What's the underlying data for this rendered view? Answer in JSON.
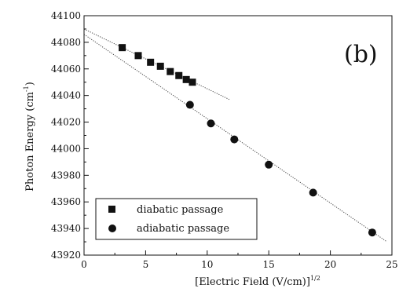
{
  "chart_data": {
    "type": "scatter",
    "panel_label": "(b)",
    "xlabel": "[Electric Field (V/cm)]",
    "xlabel_superscript": "1/2",
    "ylabel": "Photon Energy (cm",
    "ylabel_superscript": "-1",
    "ylabel_suffix": ")",
    "xlim": [
      0,
      25
    ],
    "ylim": [
      43920,
      44100
    ],
    "x_ticks": [
      0,
      5,
      10,
      15,
      20,
      25
    ],
    "y_ticks": [
      43920,
      43940,
      43960,
      43980,
      44000,
      44020,
      44040,
      44060,
      44080,
      44100
    ],
    "grid": false,
    "legend_position": "bottom-left",
    "series": [
      {
        "name": "diabatic passage",
        "marker": "square",
        "color": "#111111",
        "points": [
          {
            "x": 3.1,
            "y": 44076
          },
          {
            "x": 4.4,
            "y": 44070
          },
          {
            "x": 5.4,
            "y": 44065
          },
          {
            "x": 6.2,
            "y": 44062
          },
          {
            "x": 7.0,
            "y": 44058
          },
          {
            "x": 7.7,
            "y": 44055
          },
          {
            "x": 8.3,
            "y": 44052
          },
          {
            "x": 8.8,
            "y": 44050
          }
        ],
        "fit_line": {
          "x": [
            0,
            11.8
          ],
          "y": [
            44090,
            44037
          ]
        }
      },
      {
        "name": "adiabatic passage",
        "marker": "circle",
        "color": "#111111",
        "points": [
          {
            "x": 8.6,
            "y": 44033
          },
          {
            "x": 10.3,
            "y": 44019
          },
          {
            "x": 12.2,
            "y": 44007
          },
          {
            "x": 15.0,
            "y": 43988
          },
          {
            "x": 18.6,
            "y": 43967
          },
          {
            "x": 23.4,
            "y": 43937
          }
        ],
        "fit_line": {
          "x": [
            0,
            24.6
          ],
          "y": [
            44086,
            43930
          ]
        }
      }
    ]
  }
}
